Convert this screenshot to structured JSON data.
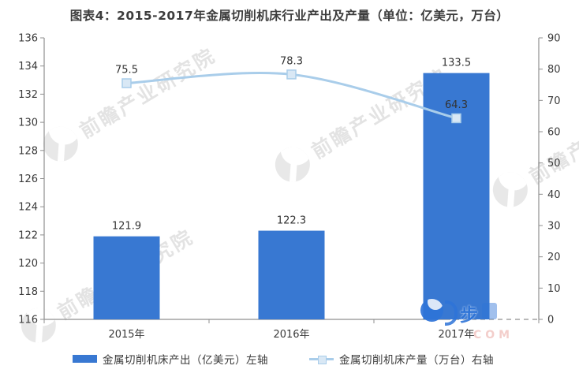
{
  "title": "图表4：2015-2017年金属切削机床行业产出及产量（单位：亿美元，万台）",
  "chart_data": {
    "type": "bar+line",
    "categories": [
      "2015年",
      "2016年",
      "2017年"
    ],
    "series": [
      {
        "name": "金属切削机床产出（亿美元）左轴",
        "type": "bar",
        "axis": "left",
        "values": [
          121.9,
          122.3,
          133.5
        ]
      },
      {
        "name": "金属切削机床产量（万台）右轴",
        "type": "line",
        "axis": "right",
        "values": [
          75.5,
          78.3,
          64.3
        ]
      }
    ],
    "left_axis": {
      "min": 116,
      "max": 136,
      "step": 2,
      "ticks": [
        136,
        134,
        132,
        130,
        128,
        126,
        124,
        122,
        120,
        118,
        116
      ]
    },
    "right_axis": {
      "min": 0,
      "max": 90,
      "step": 10,
      "ticks": [
        90,
        80,
        70,
        60,
        50,
        40,
        30,
        20,
        10,
        0
      ]
    },
    "grid": false,
    "data_labels": true,
    "legend_position": "bottom"
  },
  "legend": {
    "items": [
      {
        "label": "金属切削机床产出（亿美元）左轴",
        "swatch": "bar"
      },
      {
        "label": "金属切削机床产量（万台）右轴",
        "swatch": "line-marker"
      }
    ]
  },
  "watermarks": {
    "diagonal_text": "前瞻产业研究院",
    "corner_text": "步",
    "corner_sub": "COM"
  },
  "colors": {
    "bar": "#3878d2",
    "line": "#a9cdea",
    "marker_fill": "#d9e8f5",
    "axis_line": "#8f8f8f",
    "tick_text": "#3a3a3a",
    "label_text": "#333333",
    "title_text": "#3c3c3c"
  }
}
